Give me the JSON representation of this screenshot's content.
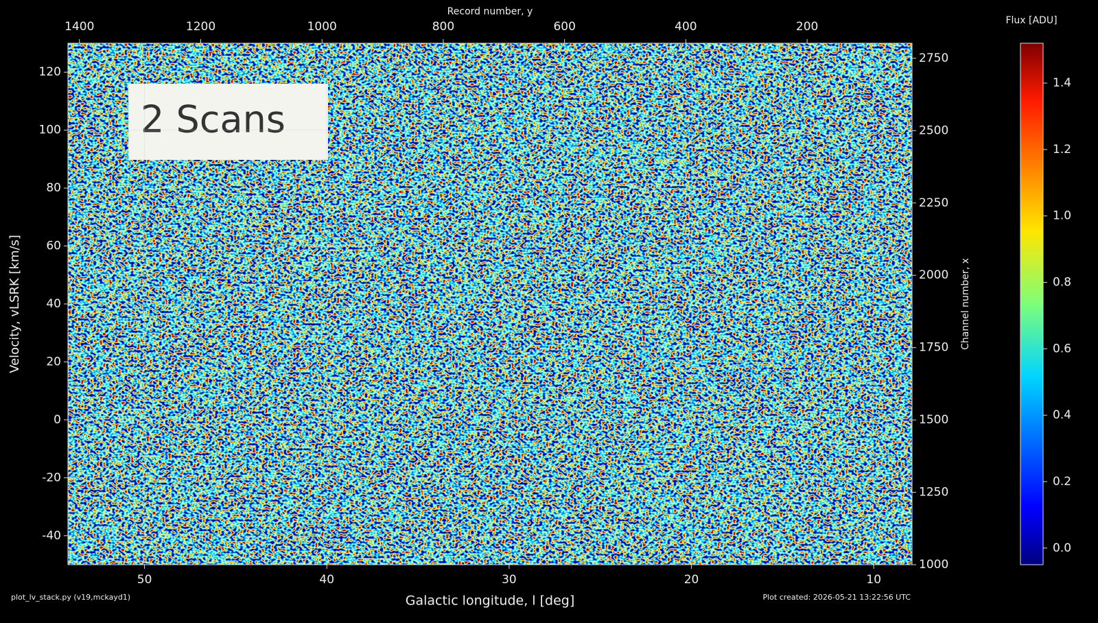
{
  "chart_data": {
    "type": "heatmap",
    "annotation": "2 Scans",
    "x_label": "Galactic longitude, l [deg]",
    "x2_label": "Record number, y",
    "y_label": "Velocity, vLSRK [km/s]",
    "y2_label": "Channel number, x",
    "colorbar_label": "Flux [ADU]",
    "colormap": "jet",
    "grid": true,
    "xlim": [
      54.2,
      7.9
    ],
    "xticks": [
      50,
      40,
      30,
      20,
      10
    ],
    "x2lim": [
      1419,
      27
    ],
    "x2ticks": [
      1400,
      1200,
      1000,
      800,
      600,
      400,
      200
    ],
    "ylim": [
      -50,
      130
    ],
    "yticks": [
      -40,
      -20,
      0,
      20,
      40,
      60,
      80,
      100,
      120
    ],
    "y2lim": [
      1000,
      2802
    ],
    "y2ticks": [
      1000,
      1250,
      1500,
      1750,
      2000,
      2250,
      2500,
      2750
    ],
    "clim": [
      -0.05,
      1.52
    ],
    "cticks": [
      {
        "value": 0,
        "label": "0.0"
      },
      0.2,
      0.4,
      0.6,
      0.8,
      {
        "value": 1,
        "label": "1.0"
      },
      1.2,
      1.4
    ],
    "footer_left": "plot_lv_stack.py (v19,mckayd1)",
    "footer_right": "Plot created: 2026-05-21 13:22:56 UTC"
  }
}
